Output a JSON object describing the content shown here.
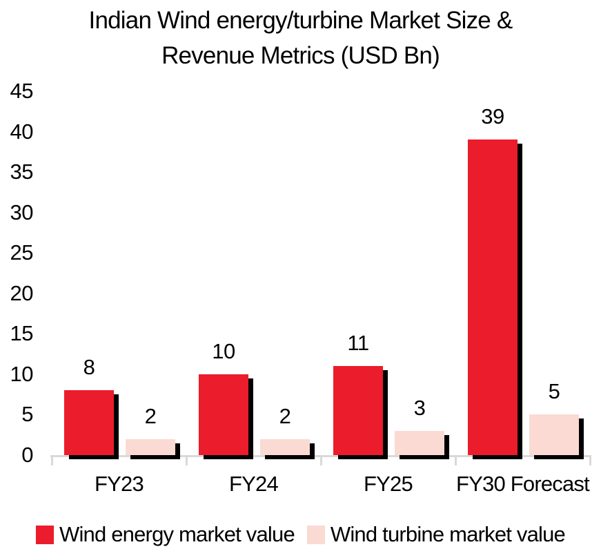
{
  "chart_data": {
    "type": "bar",
    "title": "Indian Wind energy/turbine Market Size & Revenue Metrics (USD Bn)",
    "title_lines": [
      "Indian Wind energy/turbine Market Size &",
      "Revenue Metrics (USD Bn)"
    ],
    "categories": [
      "FY23",
      "FY24",
      "FY25",
      "FY30 Forecast"
    ],
    "series": [
      {
        "name": "Wind energy market value",
        "color": "#EB1C2B",
        "values": [
          8,
          10,
          11,
          39
        ]
      },
      {
        "name": "Wind turbine market value",
        "color": "#FADAD3",
        "values": [
          2,
          2,
          3,
          5
        ]
      }
    ],
    "xlabel": "",
    "ylabel": "",
    "ylim": [
      0,
      45
    ],
    "yticks": [
      0,
      5,
      10,
      15,
      20,
      25,
      30,
      35,
      40,
      45
    ],
    "grid": false,
    "legend_position": "bottom",
    "bar_effect": "black drop shadow offset right-down",
    "colors": {
      "shadow": "#000000",
      "axis_line": "#D9D9D9",
      "text": "#000000",
      "background": "#FFFFFF"
    }
  }
}
